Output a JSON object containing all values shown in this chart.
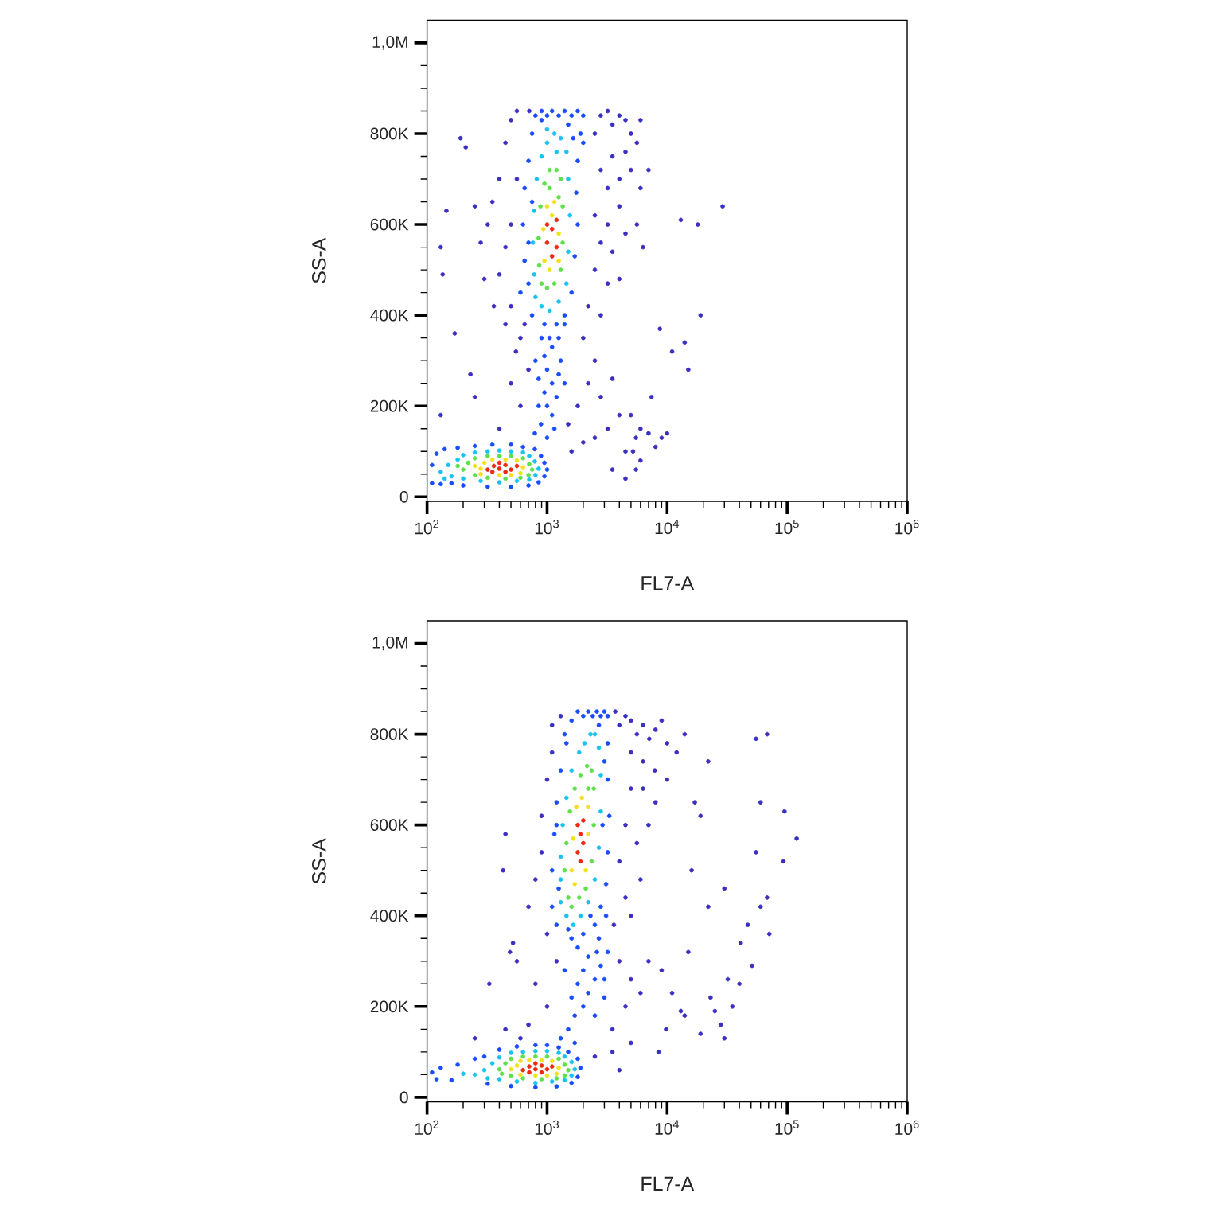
{
  "chart_data": [
    {
      "type": "scatter",
      "xlabel": "FL7-A",
      "ylabel": "SS-A",
      "log": "x",
      "marker": "circle",
      "xlim": [
        100,
        1000000
      ],
      "ylim": [
        -10000,
        1050000
      ],
      "xticks": [
        {
          "value": 100,
          "label": "10$^{2}$"
        },
        {
          "value": 200,
          "label": null
        },
        {
          "value": 300,
          "label": null
        },
        {
          "value": 400,
          "label": null
        },
        {
          "value": 500,
          "label": null
        },
        {
          "value": 600,
          "label": null
        },
        {
          "value": 700,
          "label": null
        },
        {
          "value": 800,
          "label": null
        },
        {
          "value": 900,
          "label": null
        },
        {
          "value": 1000,
          "label": "10$^{3}$"
        },
        {
          "value": 2000,
          "label": null
        },
        {
          "value": 3000,
          "label": null
        },
        {
          "value": 4000,
          "label": null
        },
        {
          "value": 5000,
          "label": null
        },
        {
          "value": 6000,
          "label": null
        },
        {
          "value": 7000,
          "label": null
        },
        {
          "value": 8000,
          "label": null
        },
        {
          "value": 9000,
          "label": null
        },
        {
          "value": 10000,
          "label": "10$^{4}$"
        },
        {
          "value": 20000,
          "label": null
        },
        {
          "value": 30000,
          "label": null
        },
        {
          "value": 40000,
          "label": null
        },
        {
          "value": 50000,
          "label": null
        },
        {
          "value": 60000,
          "label": null
        },
        {
          "value": 70000,
          "label": null
        },
        {
          "value": 80000,
          "label": null
        },
        {
          "value": 90000,
          "label": null
        },
        {
          "value": 100000,
          "label": "10$^{5}$"
        },
        {
          "value": 200000,
          "label": null
        },
        {
          "value": 300000,
          "label": null
        },
        {
          "value": 400000,
          "label": null
        },
        {
          "value": 500000,
          "label": null
        },
        {
          "value": 600000,
          "label": null
        },
        {
          "value": 700000,
          "label": null
        },
        {
          "value": 800000,
          "label": null
        },
        {
          "value": 900000,
          "label": null
        },
        {
          "value": 1000000,
          "label": "10$^{6}$"
        }
      ],
      "yticks": [
        0,
        {
          "value": 50000,
          "label": null
        },
        {
          "value": 100000,
          "label": null
        },
        {
          "value": 150000,
          "label": null
        },
        {
          "value": 200000,
          "label": "200K"
        },
        {
          "value": 250000,
          "label": null
        },
        {
          "value": 300000,
          "label": null
        },
        {
          "value": 350000,
          "label": null
        },
        {
          "value": 400000,
          "label": "400K"
        },
        {
          "value": 450000,
          "label": null
        },
        {
          "value": 500000,
          "label": null
        },
        {
          "value": 550000,
          "label": null
        },
        {
          "value": 600000,
          "label": "600K"
        },
        {
          "value": 650000,
          "label": null
        },
        {
          "value": 700000,
          "label": null
        },
        {
          "value": 750000,
          "label": null
        },
        {
          "value": 800000,
          "label": "800K"
        },
        {
          "value": 850000,
          "label": null
        },
        {
          "value": 900000,
          "label": null
        },
        {
          "value": 950000,
          "label": null
        },
        {
          "value": 1000000,
          "label": "1,0M"
        }
      ],
      "series": [
        {
          "color": "#3a2fc0",
          "x": [
            320,
            280,
            350,
            400,
            450,
            500,
            560,
            400,
            450,
            360,
            300,
            250,
            500,
            560,
            450,
            600,
            500,
            710,
            190,
            210,
            145,
            130,
            135,
            170,
            230,
            130,
            250,
            2500,
            2800,
            3200,
            3500,
            4000,
            4500,
            5000,
            5600,
            4500,
            3500,
            2800,
            3200,
            4000,
            5000,
            6000,
            4000,
            3200,
            2500,
            2800,
            3500,
            4500,
            5600,
            2500,
            3200,
            2200,
            2800,
            4000,
            6300,
            7000,
            6000,
            2000,
            2500,
            1800,
            2200,
            2800,
            3500,
            4000,
            3200,
            2500,
            2000,
            1600,
            600,
            700,
            550,
            500,
            400,
            650,
            1500,
            4500,
            3500,
            29000,
            13000,
            18000,
            19000,
            8700,
            14000,
            11000,
            15000,
            7400,
            5000,
            5500,
            6000,
            7000,
            9000,
            5200,
            6000,
            8000,
            5500,
            4500,
            10000
          ],
          "values": [
            600000,
            560000,
            650000,
            700000,
            780000,
            830000,
            850000,
            490000,
            550000,
            420000,
            480000,
            640000,
            600000,
            700000,
            380000,
            350000,
            420000,
            850000,
            790000,
            770000,
            630000,
            550000,
            490000,
            360000,
            270000,
            180000,
            220000,
            800000,
            840000,
            850000,
            820000,
            840000,
            830000,
            800000,
            780000,
            760000,
            750000,
            720000,
            680000,
            700000,
            720000,
            680000,
            640000,
            600000,
            620000,
            560000,
            540000,
            580000,
            600000,
            500000,
            470000,
            420000,
            400000,
            480000,
            550000,
            720000,
            830000,
            350000,
            300000,
            200000,
            250000,
            220000,
            260000,
            180000,
            150000,
            130000,
            120000,
            100000,
            200000,
            280000,
            320000,
            250000,
            150000,
            380000,
            160000,
            100000,
            60000,
            640000,
            610000,
            600000,
            400000,
            370000,
            340000,
            320000,
            280000,
            220000,
            180000,
            130000,
            150000,
            140000,
            130000,
            100000,
            80000,
            110000,
            60000,
            40000,
            140000
          ]
        },
        {
          "color": "#1a4cff",
          "x": [
            110,
            110,
            120,
            130,
            140,
            180,
            250,
            350,
            500,
            630,
            790,
            890,
            950,
            1000,
            950,
            850,
            700,
            500,
            320,
            200,
            160,
            790,
            890,
            1000,
            1100,
            850,
            950,
            1100,
            1250,
            1000,
            850,
            1200,
            1300,
            950,
            1100,
            1400,
            800,
            1000,
            1150,
            900,
            1250,
            1400,
            1050,
            600,
            650,
            630,
            650,
            700,
            750,
            800,
            900,
            1000,
            1100,
            1250,
            1400,
            1600,
            1800,
            2000,
            1900,
            1800,
            1750,
            1800,
            1700,
            1600,
            1400,
            1200,
            950,
            750,
            700,
            700,
            900,
            1500,
            2000,
            1650,
            750
          ],
          "values": [
            30000,
            70000,
            95000,
            28000,
            105000,
            108000,
            112000,
            115000,
            115000,
            110000,
            105000,
            90000,
            75000,
            60000,
            45000,
            32000,
            25000,
            22000,
            22000,
            25000,
            30000,
            140000,
            160000,
            130000,
            180000,
            200000,
            230000,
            250000,
            270000,
            280000,
            260000,
            220000,
            300000,
            310000,
            330000,
            250000,
            300000,
            200000,
            150000,
            350000,
            350000,
            380000,
            350000,
            450000,
            520000,
            600000,
            680000,
            740000,
            800000,
            840000,
            850000,
            840000,
            850000,
            840000,
            850000,
            840000,
            850000,
            840000,
            800000,
            740000,
            670000,
            600000,
            530000,
            450000,
            400000,
            380000,
            380000,
            400000,
            470000,
            560000,
            830000,
            820000,
            780000,
            790000,
            650000
          ]
        },
        {
          "color": "#19c3f0",
          "x": [
            130,
            150,
            160,
            180,
            200,
            250,
            320,
            400,
            500,
            630,
            710,
            790,
            850,
            800,
            710,
            560,
            400,
            280,
            200,
            140,
            800,
            900,
            1050,
            1250,
            1450,
            1500,
            1550,
            1500,
            1450,
            1300,
            1150,
            1000,
            900,
            820,
            780,
            760,
            780,
            1200,
            1000
          ],
          "values": [
            55000,
            70000,
            45000,
            82000,
            92000,
            98000,
            100000,
            102000,
            100000,
            98000,
            90000,
            78000,
            62000,
            48000,
            38000,
            35000,
            32000,
            35000,
            40000,
            40000,
            440000,
            420000,
            410000,
            430000,
            470000,
            540000,
            620000,
            700000,
            760000,
            790000,
            800000,
            780000,
            750000,
            700000,
            630000,
            560000,
            490000,
            760000,
            810000
          ]
        },
        {
          "color": "#5ee04a",
          "x": [
            200,
            220,
            250,
            320,
            400,
            500,
            630,
            710,
            750,
            700,
            600,
            450,
            320,
            250,
            180,
            900,
            1000,
            1150,
            1300,
            1350,
            1350,
            1300,
            1200,
            1050,
            950,
            880,
            850,
            860,
            1050,
            1250
          ],
          "values": [
            60000,
            75000,
            85000,
            90000,
            90000,
            90000,
            85000,
            72000,
            60000,
            48000,
            42000,
            40000,
            42000,
            48000,
            68000,
            470000,
            460000,
            470000,
            500000,
            560000,
            640000,
            700000,
            720000,
            720000,
            690000,
            640000,
            570000,
            510000,
            680000,
            660000
          ]
        },
        {
          "color": "#f2e21e",
          "x": [
            280,
            300,
            350,
            450,
            560,
            630,
            600,
            500,
            400,
            280,
            250,
            950,
            1000,
            1150,
            1250,
            1250,
            1050,
            930,
            1100
          ],
          "values": [
            62000,
            75000,
            82000,
            82000,
            80000,
            65000,
            52000,
            48000,
            48000,
            50000,
            68000,
            520000,
            640000,
            650000,
            580000,
            520000,
            500000,
            590000,
            620000
          ]
        },
        {
          "color": "#ef2a12",
          "x": [
            320,
            360,
            400,
            450,
            500,
            400,
            350,
            450,
            560,
            1000,
            1100,
            1200,
            1100,
            1000,
            1200
          ],
          "values": [
            60000,
            68000,
            62000,
            70000,
            60000,
            75000,
            55000,
            55000,
            68000,
            560000,
            590000,
            550000,
            530000,
            600000,
            610000
          ]
        }
      ]
    },
    {
      "type": "scatter",
      "xlabel": "FL7-A",
      "ylabel": "SS-A",
      "log": "x",
      "marker": "circle",
      "xlim": [
        100,
        1000000
      ],
      "ylim": [
        -10000,
        1050000
      ],
      "xticks": [
        {
          "value": 100,
          "label": "10$^{2}$"
        },
        {
          "value": 200,
          "label": null
        },
        {
          "value": 300,
          "label": null
        },
        {
          "value": 400,
          "label": null
        },
        {
          "value": 500,
          "label": null
        },
        {
          "value": 600,
          "label": null
        },
        {
          "value": 700,
          "label": null
        },
        {
          "value": 800,
          "label": null
        },
        {
          "value": 900,
          "label": null
        },
        {
          "value": 1000,
          "label": "10$^{3}$"
        },
        {
          "value": 2000,
          "label": null
        },
        {
          "value": 3000,
          "label": null
        },
        {
          "value": 4000,
          "label": null
        },
        {
          "value": 5000,
          "label": null
        },
        {
          "value": 6000,
          "label": null
        },
        {
          "value": 7000,
          "label": null
        },
        {
          "value": 8000,
          "label": null
        },
        {
          "value": 9000,
          "label": null
        },
        {
          "value": 10000,
          "label": "10$^{4}$"
        },
        {
          "value": 20000,
          "label": null
        },
        {
          "value": 30000,
          "label": null
        },
        {
          "value": 40000,
          "label": null
        },
        {
          "value": 50000,
          "label": null
        },
        {
          "value": 60000,
          "label": null
        },
        {
          "value": 70000,
          "label": null
        },
        {
          "value": 80000,
          "label": null
        },
        {
          "value": 90000,
          "label": null
        },
        {
          "value": 100000,
          "label": "10$^{5}$"
        },
        {
          "value": 200000,
          "label": null
        },
        {
          "value": 300000,
          "label": null
        },
        {
          "value": 400000,
          "label": null
        },
        {
          "value": 500000,
          "label": null
        },
        {
          "value": 600000,
          "label": null
        },
        {
          "value": 700000,
          "label": null
        },
        {
          "value": 800000,
          "label": null
        },
        {
          "value": 900000,
          "label": null
        },
        {
          "value": 1000000,
          "label": "10$^{6}$"
        }
      ],
      "yticks": [
        0,
        {
          "value": 50000,
          "label": null
        },
        {
          "value": 100000,
          "label": null
        },
        {
          "value": 150000,
          "label": null
        },
        {
          "value": 200000,
          "label": "200K"
        },
        {
          "value": 250000,
          "label": null
        },
        {
          "value": 300000,
          "label": null
        },
        {
          "value": 350000,
          "label": null
        },
        {
          "value": 400000,
          "label": "400K"
        },
        {
          "value": 450000,
          "label": null
        },
        {
          "value": 500000,
          "label": null
        },
        {
          "value": 550000,
          "label": null
        },
        {
          "value": 600000,
          "label": "600K"
        },
        {
          "value": 650000,
          "label": null
        },
        {
          "value": 700000,
          "label": null
        },
        {
          "value": 750000,
          "label": null
        },
        {
          "value": 800000,
          "label": "800K"
        },
        {
          "value": 850000,
          "label": null
        },
        {
          "value": 900000,
          "label": null
        },
        {
          "value": 950000,
          "label": null
        },
        {
          "value": 1000000,
          "label": "1,0M"
        }
      ],
      "series": [
        {
          "color": "#3a2fc0",
          "x": [
            450,
            430,
            330,
            490,
            520,
            800,
            700,
            900,
            1000,
            1100,
            1300,
            900,
            1000,
            800,
            700,
            1200,
            1000,
            600,
            250,
            450,
            1100,
            560,
            3700,
            4000,
            4500,
            5000,
            5600,
            6300,
            7100,
            8000,
            9000,
            10000,
            12000,
            14000,
            5000,
            6300,
            7900,
            10000,
            6300,
            8000,
            5000,
            4500,
            5600,
            7000,
            4000,
            6000,
            4500,
            5000,
            3600,
            4000,
            5000,
            4500,
            3500,
            6000,
            7000,
            3500,
            2500,
            4000,
            5000,
            55000,
            68000,
            60000,
            95000,
            120000,
            55000,
            93000,
            68000,
            60000,
            71000,
            47000,
            41000,
            51000,
            32000,
            40000,
            23000,
            25000,
            30000,
            16000,
            22000,
            30000,
            22000,
            19000,
            17000,
            15000,
            13000,
            9800,
            8500,
            19000,
            14000,
            11000,
            9000,
            28000,
            35000
          ],
          "values": [
            580000,
            500000,
            250000,
            320000,
            340000,
            480000,
            420000,
            620000,
            700000,
            760000,
            840000,
            540000,
            360000,
            250000,
            160000,
            300000,
            200000,
            130000,
            130000,
            150000,
            820000,
            300000,
            850000,
            820000,
            840000,
            830000,
            800000,
            820000,
            790000,
            810000,
            830000,
            780000,
            760000,
            800000,
            760000,
            740000,
            720000,
            700000,
            680000,
            650000,
            680000,
            600000,
            560000,
            600000,
            520000,
            480000,
            440000,
            400000,
            380000,
            300000,
            260000,
            200000,
            150000,
            230000,
            300000,
            100000,
            90000,
            60000,
            120000,
            790000,
            800000,
            650000,
            630000,
            570000,
            540000,
            520000,
            440000,
            420000,
            360000,
            380000,
            340000,
            290000,
            260000,
            250000,
            220000,
            190000,
            130000,
            500000,
            420000,
            460000,
            740000,
            620000,
            650000,
            320000,
            190000,
            150000,
            100000,
            140000,
            180000,
            230000,
            280000,
            160000,
            200000
          ]
        },
        {
          "color": "#1a4cff",
          "x": [
            110,
            120,
            130,
            160,
            180,
            250,
            300,
            400,
            560,
            800,
            1000,
            1250,
            1500,
            1800,
            1900,
            1800,
            1600,
            1200,
            800,
            500,
            320,
            1300,
            1500,
            1700,
            1600,
            1800,
            2000,
            2200,
            2500,
            2800,
            3000,
            2200,
            1800,
            2000,
            2500,
            1400,
            3200,
            2700,
            2600,
            1600,
            2300,
            1700,
            3000,
            1100,
            1100,
            1150,
            1200,
            1300,
            1450,
            1600,
            1800,
            2000,
            2200,
            2400,
            2600,
            2800,
            3000,
            3200,
            3200,
            3200,
            3300,
            3200,
            3100,
            2800,
            2500,
            2000,
            1500,
            1200,
            1400,
            2700,
            3000,
            1200,
            3100,
            1250,
            2900
          ],
          "values": [
            55000,
            40000,
            65000,
            38000,
            72000,
            85000,
            90000,
            105000,
            112000,
            115000,
            115000,
            110000,
            100000,
            85000,
            65000,
            45000,
            32000,
            24000,
            22000,
            25000,
            30000,
            130000,
            150000,
            180000,
            220000,
            250000,
            280000,
            230000,
            260000,
            290000,
            220000,
            310000,
            330000,
            200000,
            180000,
            280000,
            320000,
            350000,
            320000,
            350000,
            400000,
            120000,
            260000,
            420000,
            500000,
            580000,
            650000,
            720000,
            780000,
            830000,
            850000,
            840000,
            850000,
            840000,
            850000,
            840000,
            850000,
            840000,
            780000,
            700000,
            620000,
            540000,
            470000,
            420000,
            380000,
            360000,
            370000,
            380000,
            800000,
            820000,
            740000,
            600000,
            400000,
            460000,
            600000
          ]
        },
        {
          "color": "#19c3f0",
          "x": [
            250,
            300,
            320,
            350,
            400,
            500,
            630,
            800,
            1000,
            1250,
            1400,
            1600,
            1700,
            1600,
            1400,
            1100,
            800,
            560,
            400,
            200,
            1300,
            1450,
            1650,
            1900,
            2200,
            2500,
            2700,
            2800,
            2800,
            2700,
            2500,
            2300,
            2050,
            1850,
            1600,
            1450,
            1350,
            1300,
            1300
          ],
          "values": [
            50000,
            60000,
            42000,
            75000,
            88000,
            98000,
            100000,
            102000,
            102000,
            98000,
            90000,
            78000,
            62000,
            48000,
            38000,
            35000,
            32000,
            35000,
            40000,
            52000,
            430000,
            400000,
            380000,
            400000,
            430000,
            480000,
            550000,
            630000,
            710000,
            770000,
            800000,
            800000,
            780000,
            760000,
            720000,
            660000,
            600000,
            530000,
            480000
          ]
        },
        {
          "color": "#5ee04a",
          "x": [
            400,
            450,
            500,
            630,
            800,
            1000,
            1250,
            1400,
            1500,
            1400,
            1200,
            900,
            630,
            500,
            420,
            1500,
            1600,
            1850,
            2100,
            2350,
            2450,
            2450,
            2350,
            2150,
            1900,
            1700,
            1550,
            1450,
            1400,
            2200
          ],
          "values": [
            62000,
            75000,
            85000,
            90000,
            90000,
            90000,
            85000,
            72000,
            60000,
            48000,
            42000,
            40000,
            42000,
            48000,
            52000,
            440000,
            420000,
            440000,
            460000,
            520000,
            600000,
            680000,
            720000,
            730000,
            710000,
            680000,
            630000,
            560000,
            500000,
            680000
          ]
        },
        {
          "color": "#f2e21e",
          "x": [
            560,
            600,
            710,
            900,
            1100,
            1250,
            1200,
            1000,
            800,
            600,
            500,
            1600,
            1700,
            1750,
            1950,
            2200,
            2200,
            2100,
            1650
          ],
          "values": [
            70000,
            80000,
            82000,
            82000,
            80000,
            65000,
            52000,
            48000,
            48000,
            50000,
            62000,
            500000,
            470000,
            640000,
            660000,
            640000,
            580000,
            500000,
            570000
          ]
        },
        {
          "color": "#ef2a12",
          "x": [
            630,
            710,
            800,
            900,
            1000,
            800,
            710,
            900,
            1100,
            1800,
            1900,
            2000,
            1800,
            1900,
            2000
          ],
          "values": [
            60000,
            68000,
            62000,
            70000,
            62000,
            75000,
            55000,
            55000,
            68000,
            540000,
            580000,
            610000,
            600000,
            520000,
            560000
          ]
        }
      ]
    }
  ]
}
